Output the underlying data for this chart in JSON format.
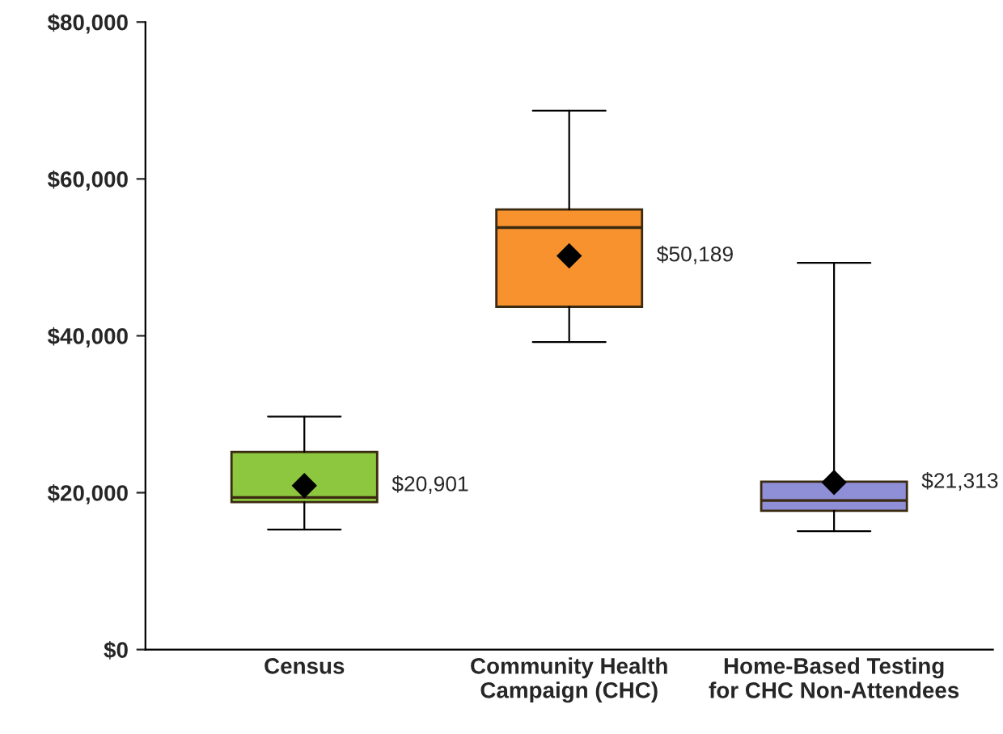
{
  "chart_data": {
    "type": "box",
    "categories": [
      "Census",
      "Community Health\nCampaign (CHC)",
      "Home-Based Testing\nfor CHC Non-Attendees"
    ],
    "boxes": [
      {
        "low": 15300,
        "q1": 18800,
        "median": 19400,
        "q3": 25200,
        "high": 29700,
        "mean": 20901
      },
      {
        "low": 39200,
        "q1": 43700,
        "median": 53800,
        "q3": 56100,
        "high": 68700,
        "mean": 50189
      },
      {
        "low": 15100,
        "q1": 17700,
        "median": 19000,
        "q3": 21400,
        "high": 49300,
        "mean": 21313
      }
    ],
    "colors": [
      "#8dc63f",
      "#f7922e",
      "#8f8fd8"
    ],
    "ylim": [
      0,
      80000
    ],
    "yticks": [
      {
        "value": 0,
        "label": "$0"
      },
      {
        "value": 20000,
        "label": "$20,000"
      },
      {
        "value": 40000,
        "label": "$40,000"
      },
      {
        "value": 60000,
        "label": "$60,000"
      },
      {
        "value": 80000,
        "label": "$80,000"
      }
    ],
    "annotations": [
      "$20,901",
      "$50,189",
      "$21,313"
    ],
    "marker": "diamond",
    "grid": false,
    "legend": false
  }
}
